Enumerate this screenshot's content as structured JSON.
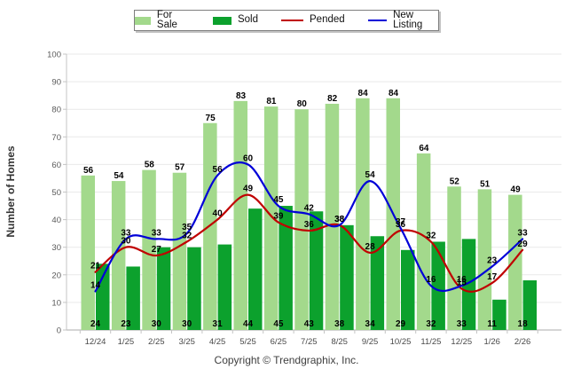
{
  "legend": {
    "items": [
      {
        "label": "For Sale",
        "swatch": "box"
      },
      {
        "label": "Sold",
        "swatch": "box"
      },
      {
        "label": "Pended",
        "swatch": "line"
      },
      {
        "label": "New Listing",
        "swatch": "line"
      }
    ]
  },
  "y_axis": {
    "title": "Number of Homes"
  },
  "footer": {
    "copyright": "Copyright © Trendgraphix, Inc."
  },
  "chart_data": {
    "type": "bar",
    "subtype": "grouped-bars-with-smoothed-lines",
    "categories": [
      "12/24",
      "1/25",
      "2/25",
      "3/25",
      "4/25",
      "5/25",
      "6/25",
      "7/25",
      "8/25",
      "9/25",
      "10/25",
      "11/25",
      "12/25",
      "1/26",
      "2/26"
    ],
    "series": [
      {
        "name": "For Sale",
        "type": "bar",
        "color": "#A3D98C",
        "label_pos": "above-bar",
        "values": [
          56,
          54,
          58,
          57,
          75,
          83,
          81,
          80,
          82,
          84,
          84,
          64,
          52,
          51,
          49
        ]
      },
      {
        "name": "Sold",
        "type": "bar",
        "color": "#0CA12D",
        "label_pos": "bar-bottom",
        "values": [
          24,
          23,
          30,
          30,
          31,
          44,
          45,
          43,
          38,
          34,
          29,
          32,
          33,
          11,
          18
        ]
      },
      {
        "name": "Pended",
        "type": "line",
        "color": "#C00000",
        "label_pos": "above-point",
        "values": [
          21,
          30,
          27,
          32,
          40,
          49,
          39,
          36,
          38,
          28,
          36,
          32,
          15,
          17,
          29
        ]
      },
      {
        "name": "New Listing",
        "type": "line",
        "color": "#0000D8",
        "label_pos": "above-point",
        "values": [
          14,
          33,
          33,
          35,
          56,
          60,
          45,
          42,
          38,
          54,
          37,
          16,
          16,
          23,
          33
        ]
      }
    ],
    "xlabel": "",
    "ylabel": "Number of Homes",
    "ylim": [
      0,
      100
    ],
    "y_ticks": [
      0,
      10,
      20,
      30,
      40,
      50,
      60,
      70,
      80,
      90,
      100
    ],
    "grid": true,
    "legend_position": "top-center"
  }
}
